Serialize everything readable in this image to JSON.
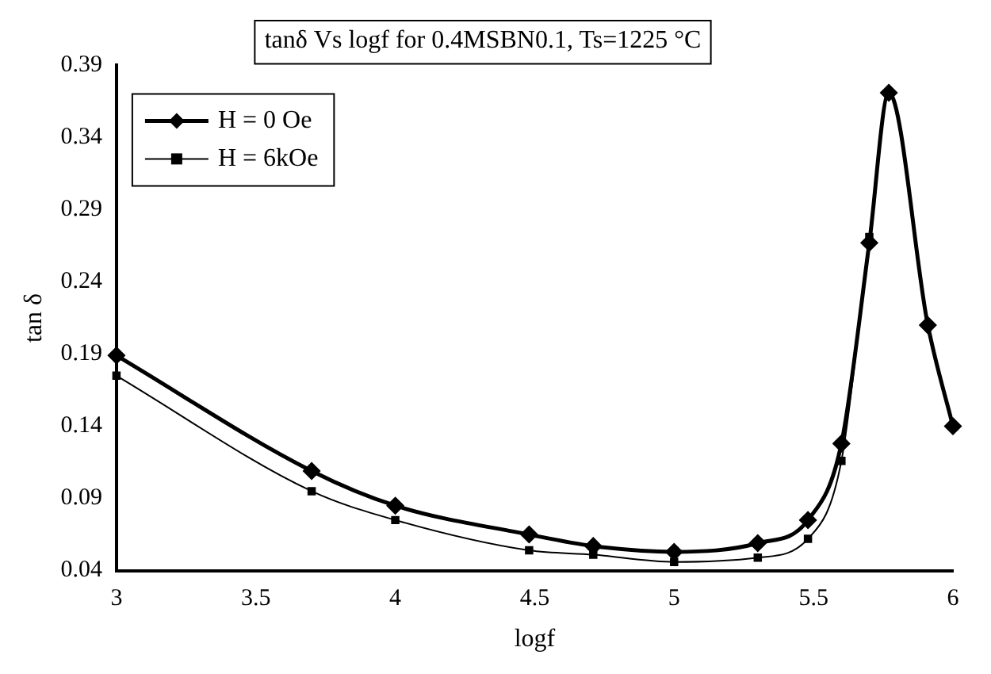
{
  "chart_data": {
    "type": "line",
    "title": "tanδ Vs logf for 0.4MSBN0.1, Ts=1225 °C",
    "xlabel": "logf",
    "ylabel": "tan δ",
    "xlim": [
      3,
      6
    ],
    "xticks": [
      3,
      3.5,
      4,
      4.5,
      5,
      5.5,
      6
    ],
    "ylim": [
      0.04,
      0.39
    ],
    "yticks": [
      0.04,
      0.09,
      0.14,
      0.19,
      0.24,
      0.29,
      0.34,
      0.39
    ],
    "grid": false,
    "legend": "top left",
    "series": [
      {
        "name": "H = 0 Oe",
        "color": "#000000",
        "marker": "diamond",
        "x": [
          3,
          3.7,
          4,
          4.48,
          4.71,
          5,
          5.3,
          5.48,
          5.6,
          5.7,
          5.77,
          5.91,
          6
        ],
        "values": [
          0.189,
          0.109,
          0.085,
          0.065,
          0.057,
          0.053,
          0.059,
          0.075,
          0.128,
          0.267,
          0.371,
          0.21,
          0.14
        ]
      },
      {
        "name": "H = 6kOe",
        "color": "#000000",
        "marker": "square",
        "x": [
          3,
          3.7,
          4,
          4.48,
          4.71,
          5,
          5.3,
          5.48,
          5.6,
          5.7,
          5.77,
          5.91,
          6
        ],
        "values": [
          0.175,
          0.095,
          0.075,
          0.054,
          0.051,
          0.046,
          0.049,
          0.062,
          0.116,
          0.271,
          0.37,
          0.21,
          0.14
        ]
      }
    ]
  }
}
